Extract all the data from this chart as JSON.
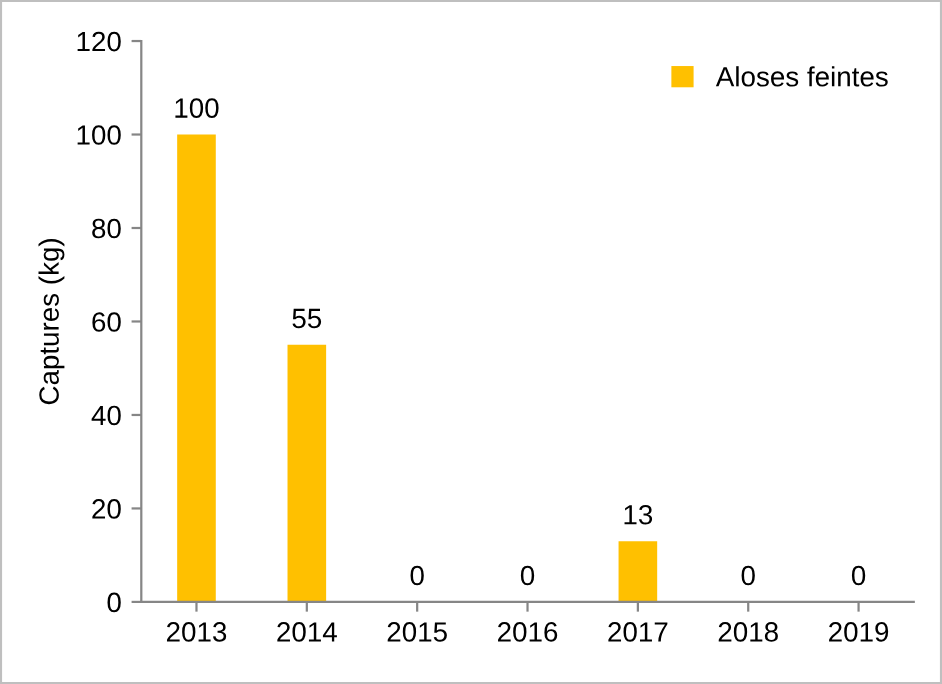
{
  "chart_data": {
    "type": "bar",
    "ylabel": "Captures (kg)",
    "categories": [
      "2013",
      "2014",
      "2015",
      "2016",
      "2017",
      "2018",
      "2019"
    ],
    "series": [
      {
        "name": "Aloses feintes",
        "color": "#ffc000",
        "values": [
          100,
          55,
          0,
          0,
          13,
          0,
          0
        ]
      }
    ],
    "ylim": [
      0,
      120
    ],
    "yticks": [
      0,
      20,
      40,
      60,
      80,
      100,
      120
    ],
    "grid": false,
    "legend": "top right",
    "data_labels": true
  }
}
